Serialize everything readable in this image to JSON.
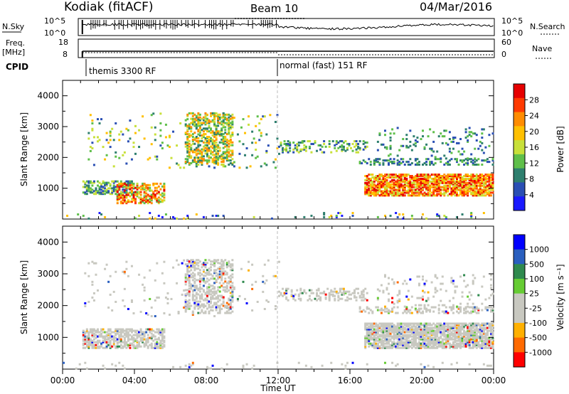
{
  "header": {
    "station": "Kodiak (fitACF)",
    "beam": "Beam 10",
    "date": "04/Mar/2016"
  },
  "strip_labels": {
    "nsky": "N.Sky",
    "nsearch": "N.Search",
    "freq": "Freq.",
    "freq_unit": "[MHz]",
    "nave": "Nave",
    "cpid": "CPID"
  },
  "strip_ticks": {
    "nsky_top": "10^5",
    "nsky_bottom": "10^0",
    "nsearch_top": "10^5",
    "nsearch_bottom": "10^0",
    "freq_top": "18",
    "freq_bottom": "8",
    "nave_top": "60",
    "nave_bottom": "0"
  },
  "cpid_segments": [
    {
      "label": "themis 3300 RF"
    },
    {
      "label": "normal (fast) 151 RF"
    }
  ],
  "colors": {
    "power": [
      "#1a1aff",
      "#2a4fb4",
      "#2e7f6e",
      "#5fbf4a",
      "#c8e03a",
      "#ffc000",
      "#ff8c00",
      "#ff3a00",
      "#e60000"
    ],
    "velocity": [
      "#0000ff",
      "#2a5fbf",
      "#2f8a4e",
      "#66cc33",
      "#c8c8c0",
      "#c8c8c0",
      "#ffb000",
      "#ff6a00",
      "#ff0000"
    ]
  },
  "chart_data": [
    {
      "type": "heatmap",
      "panel": "power",
      "ylabel": "Slant Range [km]",
      "ylim": [
        0,
        4500
      ],
      "yticks": [
        "1000",
        "2000",
        "3000",
        "4000"
      ],
      "colorbar_label": "Power [dB]",
      "colorbar_ticks": [
        "4",
        "8",
        "12",
        "16",
        "20",
        "24",
        "28"
      ],
      "colorbar_range": [
        0,
        30
      ]
    },
    {
      "type": "heatmap",
      "panel": "velocity",
      "ylabel": "Slant Range [km]",
      "ylim": [
        0,
        4500
      ],
      "yticks": [
        "1000",
        "2000",
        "3000",
        "4000"
      ],
      "colorbar_label": "Velocity [m s⁻¹]",
      "colorbar_ticks": [
        "1000",
        "500",
        "100",
        "25",
        "-25",
        "-100",
        "-500",
        "-1000"
      ]
    }
  ],
  "x_axis": {
    "label": "Time UT",
    "ticks": [
      "00:00",
      "04:00",
      "08:00",
      "12:00",
      "16:00",
      "20:00",
      "00:00"
    ],
    "range_hours": [
      0,
      24
    ]
  }
}
